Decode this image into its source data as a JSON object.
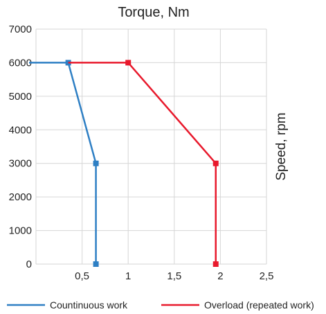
{
  "chart_data": {
    "type": "line",
    "title": "Torque, Nm",
    "xlabel": "",
    "ylabel": "Speed, rpm",
    "xlim": [
      0,
      2.5
    ],
    "ylim": [
      0,
      7000
    ],
    "x_ticks": [
      0.5,
      1,
      1.5,
      2,
      2.5
    ],
    "x_tick_labels": [
      "0,5",
      "1",
      "1,5",
      "2",
      "2,5"
    ],
    "y_ticks": [
      0,
      1000,
      2000,
      3000,
      4000,
      5000,
      6000,
      7000
    ],
    "y_tick_labels": [
      "0",
      "1000",
      "2000",
      "3000",
      "4000",
      "5000",
      "6000",
      "7000"
    ],
    "grid": true,
    "legend_position": "bottom",
    "series": [
      {
        "name": "Countinuous work",
        "color": "#2e7fc4",
        "points": [
          [
            0.35,
            6000
          ],
          [
            0.65,
            3000
          ],
          [
            0.65,
            0
          ]
        ],
        "extension_to_axis": [
          [
            0,
            6000
          ],
          [
            0.35,
            6000
          ]
        ]
      },
      {
        "name": "Overload (repeated work)",
        "color": "#e8192c",
        "points": [
          [
            1.0,
            6000
          ],
          [
            1.95,
            3000
          ],
          [
            1.95,
            0
          ]
        ],
        "extension_to_axis": [
          [
            0.35,
            6000
          ],
          [
            1.0,
            6000
          ]
        ]
      }
    ]
  }
}
